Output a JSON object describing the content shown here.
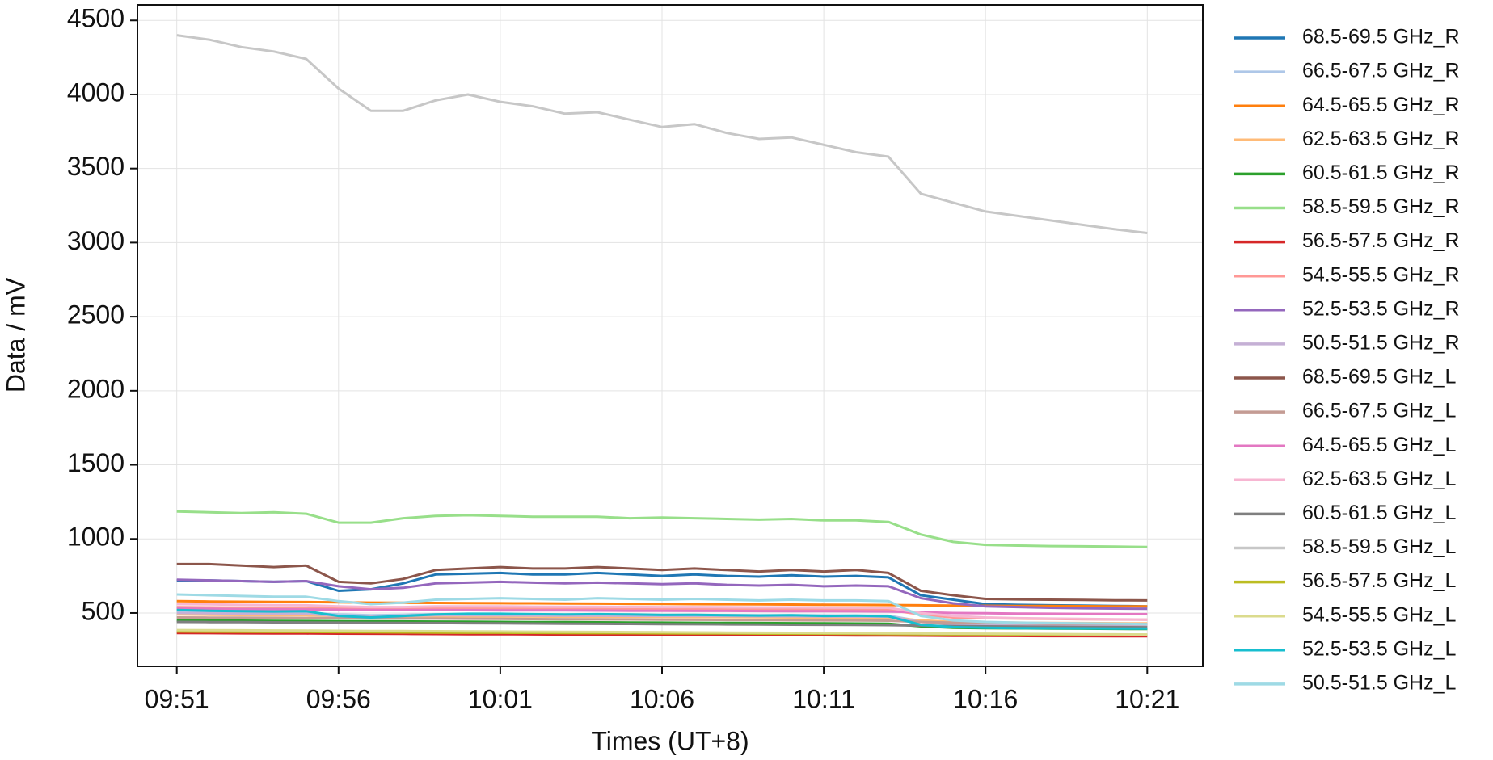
{
  "chart_data": {
    "type": "line",
    "xlabel": "Times (UT+8)",
    "ylabel": "Data / mV",
    "grid": true,
    "legend": "outside-right",
    "xlim": [
      "09:49:47",
      "10:22:43"
    ],
    "xticks": [
      "09:51",
      "09:56",
      "10:01",
      "10:06",
      "10:11",
      "10:16",
      "10:21"
    ],
    "ylim": [
      140,
      4605
    ],
    "yticks": [
      500,
      1000,
      1500,
      2000,
      2500,
      3000,
      3500,
      4000,
      4500
    ],
    "x": [
      "09:51",
      "09:52",
      "09:53",
      "09:54",
      "09:55",
      "09:56",
      "09:57",
      "09:58",
      "09:59",
      "10:00",
      "10:01",
      "10:02",
      "10:03",
      "10:04",
      "10:05",
      "10:06",
      "10:07",
      "10:08",
      "10:09",
      "10:10",
      "10:11",
      "10:12",
      "10:13",
      "10:14",
      "10:15",
      "10:16",
      "10:17",
      "10:18",
      "10:19",
      "10:20",
      "10:21"
    ],
    "series": [
      {
        "name": "68.5-69.5 GHz_R",
        "color": "#1f77b4",
        "values": [
          720,
          720,
          715,
          710,
          715,
          650,
          660,
          700,
          760,
          765,
          770,
          760,
          760,
          770,
          760,
          750,
          760,
          750,
          745,
          755,
          745,
          750,
          740,
          620,
          590,
          560,
          555,
          552,
          550,
          548,
          545
        ]
      },
      {
        "name": "66.5-67.5 GHz_R",
        "color": "#aec7e8",
        "values": [
          510,
          508,
          505,
          503,
          502,
          490,
          485,
          488,
          492,
          492,
          491,
          490,
          489,
          489,
          488,
          487,
          487,
          486,
          485,
          485,
          484,
          483,
          482,
          445,
          430,
          425,
          422,
          420,
          418,
          416,
          415
        ]
      },
      {
        "name": "64.5-65.5 GHz_R",
        "color": "#ff7f0e",
        "values": [
          580,
          578,
          576,
          575,
          574,
          572,
          570,
          569,
          568,
          567,
          566,
          565,
          564,
          563,
          562,
          561,
          560,
          559,
          558,
          557,
          556,
          555,
          554,
          552,
          550,
          549,
          548,
          547,
          546,
          545,
          545
        ]
      },
      {
        "name": "62.5-63.5 GHz_R",
        "color": "#ffbb78",
        "values": [
          490,
          488,
          486,
          485,
          484,
          480,
          478,
          478,
          478,
          477,
          476,
          476,
          475,
          474,
          474,
          473,
          472,
          472,
          471,
          470,
          470,
          469,
          468,
          450,
          440,
          437,
          435,
          433,
          432,
          431,
          430
        ]
      },
      {
        "name": "60.5-61.5 GHz_R",
        "color": "#2ca02c",
        "values": [
          450,
          449,
          448,
          447,
          446,
          445,
          444,
          443,
          442,
          441,
          440,
          439,
          438,
          437,
          436,
          435,
          434,
          433,
          432,
          431,
          430,
          429,
          428,
          410,
          400,
          398,
          396,
          395,
          394,
          393,
          392
        ]
      },
      {
        "name": "58.5-59.5 GHz_R",
        "color": "#98df8a",
        "values": [
          1185,
          1180,
          1175,
          1180,
          1170,
          1110,
          1110,
          1140,
          1155,
          1160,
          1155,
          1150,
          1150,
          1150,
          1140,
          1145,
          1140,
          1135,
          1130,
          1135,
          1125,
          1125,
          1115,
          1030,
          980,
          960,
          955,
          952,
          950,
          948,
          945
        ]
      },
      {
        "name": "56.5-57.5 GHz_R",
        "color": "#d62728",
        "values": [
          365,
          364,
          363,
          362,
          362,
          361,
          360,
          359,
          358,
          357,
          357,
          356,
          355,
          354,
          354,
          353,
          352,
          352,
          351,
          350,
          350,
          349,
          348,
          347,
          346,
          346,
          345,
          344,
          344,
          343,
          343
        ]
      },
      {
        "name": "54.5-55.5 GHz_R",
        "color": "#ff9896",
        "values": [
          540,
          538,
          536,
          535,
          534,
          530,
          528,
          528,
          530,
          530,
          529,
          528,
          528,
          527,
          526,
          526,
          525,
          524,
          524,
          523,
          522,
          522,
          521,
          490,
          470,
          465,
          462,
          460,
          458,
          456,
          455
        ]
      },
      {
        "name": "52.5-53.5 GHz_R",
        "color": "#9467bd",
        "values": [
          725,
          720,
          715,
          710,
          715,
          680,
          660,
          670,
          700,
          705,
          710,
          705,
          700,
          705,
          700,
          695,
          700,
          690,
          685,
          690,
          680,
          685,
          680,
          600,
          565,
          545,
          540,
          535,
          532,
          530,
          528
        ]
      },
      {
        "name": "50.5-51.5 GHz_R",
        "color": "#c5b0d5",
        "values": [
          500,
          498,
          496,
          495,
          494,
          480,
          475,
          480,
          485,
          485,
          484,
          483,
          482,
          482,
          481,
          480,
          480,
          479,
          478,
          478,
          477,
          476,
          475,
          440,
          425,
          420,
          418,
          416,
          415,
          414,
          413
        ]
      },
      {
        "name": "68.5-69.5 GHz_L",
        "color": "#8c564b",
        "values": [
          830,
          830,
          820,
          810,
          820,
          710,
          700,
          730,
          790,
          800,
          810,
          800,
          800,
          810,
          800,
          790,
          800,
          790,
          780,
          790,
          780,
          790,
          770,
          650,
          620,
          595,
          592,
          590,
          588,
          586,
          585
        ]
      },
      {
        "name": "66.5-67.5 GHz_L",
        "color": "#c49c94",
        "values": [
          470,
          469,
          468,
          467,
          466,
          465,
          464,
          463,
          462,
          461,
          460,
          459,
          458,
          457,
          456,
          455,
          454,
          453,
          452,
          451,
          450,
          449,
          448,
          440,
          435,
          432,
          430,
          428,
          427,
          426,
          425
        ]
      },
      {
        "name": "64.5-65.5 GHz_L",
        "color": "#e377c2",
        "values": [
          530,
          528,
          526,
          525,
          524,
          522,
          520,
          520,
          520,
          519,
          518,
          518,
          517,
          516,
          515,
          515,
          514,
          514,
          513,
          512,
          512,
          511,
          510,
          505,
          500,
          498,
          496,
          495,
          494,
          493,
          492
        ]
      },
      {
        "name": "62.5-63.5 GHz_L",
        "color": "#f7b6d2",
        "values": [
          560,
          558,
          555,
          553,
          552,
          545,
          540,
          540,
          545,
          545,
          545,
          543,
          542,
          542,
          541,
          540,
          540,
          539,
          538,
          538,
          537,
          536,
          535,
          500,
          480,
          470,
          465,
          462,
          460,
          458,
          455
        ]
      },
      {
        "name": "60.5-61.5 GHz_L",
        "color": "#7f7f7f",
        "values": [
          440,
          439,
          438,
          437,
          436,
          435,
          434,
          433,
          432,
          431,
          430,
          429,
          428,
          427,
          426,
          425,
          424,
          423,
          422,
          421,
          420,
          419,
          418,
          415,
          412,
          410,
          408,
          407,
          406,
          405,
          404
        ]
      },
      {
        "name": "58.5-59.5 GHz_L",
        "color": "#c7c7c7",
        "values": [
          4400,
          4370,
          4320,
          4290,
          4240,
          4040,
          3890,
          3890,
          3960,
          4000,
          3950,
          3920,
          3870,
          3880,
          3830,
          3780,
          3800,
          3740,
          3700,
          3710,
          3660,
          3610,
          3580,
          3330,
          3270,
          3210,
          3180,
          3150,
          3120,
          3090,
          3065
        ]
      },
      {
        "name": "56.5-57.5 GHz_L",
        "color": "#bcbd22",
        "values": [
          375,
          374,
          373,
          372,
          372,
          371,
          370,
          369,
          368,
          367,
          367,
          366,
          365,
          364,
          364,
          363,
          362,
          362,
          361,
          360,
          360,
          359,
          358,
          357,
          356,
          356,
          355,
          354,
          354,
          353,
          353
        ]
      },
      {
        "name": "54.5-55.5 GHz_L",
        "color": "#dbdb8d",
        "values": [
          385,
          384,
          383,
          382,
          381,
          380,
          379,
          378,
          377,
          376,
          375,
          374,
          373,
          372,
          371,
          370,
          369,
          368,
          367,
          366,
          365,
          364,
          363,
          362,
          361,
          360,
          359,
          358,
          357,
          356,
          355
        ]
      },
      {
        "name": "52.5-53.5 GHz_L",
        "color": "#17becf",
        "values": [
          520,
          515,
          512,
          510,
          512,
          480,
          470,
          480,
          490,
          495,
          495,
          492,
          490,
          492,
          490,
          487,
          488,
          485,
          483,
          485,
          480,
          482,
          478,
          420,
          405,
          400,
          398,
          397,
          396,
          395,
          395
        ]
      },
      {
        "name": "50.5-51.5 GHz_L",
        "color": "#9edae5",
        "values": [
          625,
          620,
          615,
          610,
          610,
          580,
          560,
          570,
          590,
          595,
          600,
          595,
          590,
          600,
          595,
          590,
          595,
          590,
          585,
          590,
          585,
          585,
          580,
          480,
          450,
          440,
          435,
          432,
          430,
          428,
          425
        ]
      }
    ]
  }
}
